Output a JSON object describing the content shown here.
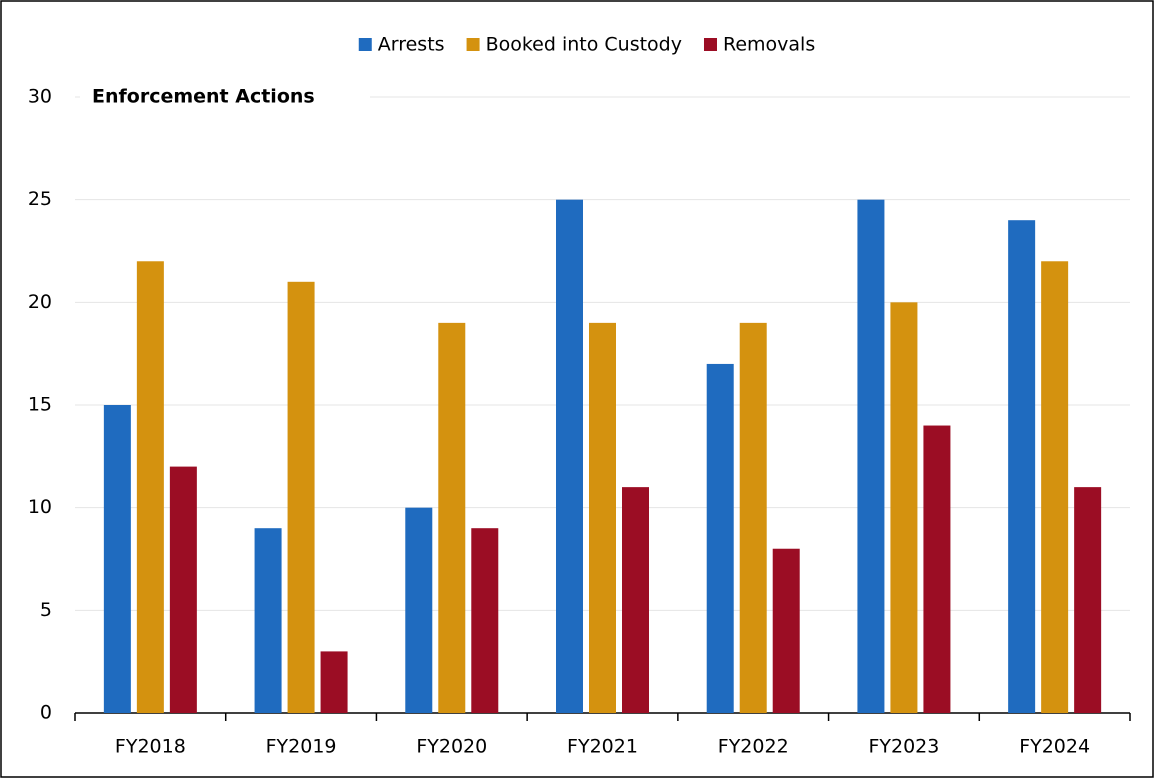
{
  "chart_data": {
    "type": "bar",
    "title": "Enforcement Actions",
    "categories": [
      "FY2018",
      "FY2019",
      "FY2020",
      "FY2021",
      "FY2022",
      "FY2023",
      "FY2024"
    ],
    "series": [
      {
        "name": "Arrests",
        "color": "#1f6bbf",
        "values": [
          15,
          9,
          10,
          25,
          17,
          25,
          24
        ]
      },
      {
        "name": "Booked into Custody",
        "color": "#d4920f",
        "values": [
          22,
          21,
          19,
          19,
          19,
          20,
          22
        ]
      },
      {
        "name": "Removals",
        "color": "#9b0d24",
        "values": [
          12,
          3,
          9,
          11,
          8,
          14,
          11
        ]
      }
    ],
    "ylim": [
      0,
      30
    ],
    "yticks": [
      0,
      5,
      10,
      15,
      20,
      25,
      30
    ],
    "grid": true,
    "legend": "top"
  }
}
